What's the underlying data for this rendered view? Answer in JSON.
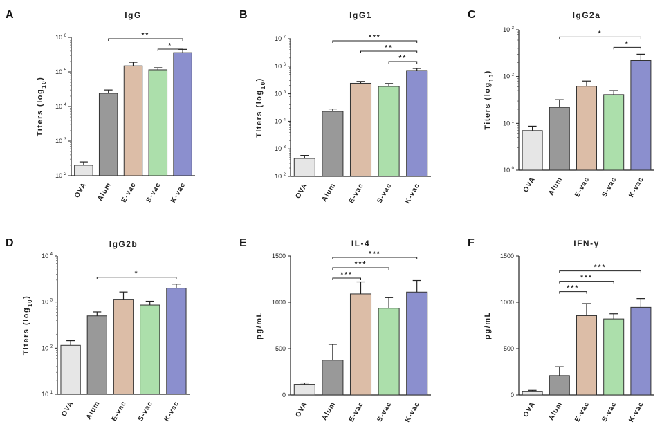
{
  "figure": {
    "background": "#ffffff"
  },
  "chart_data": [
    {
      "panel": "A",
      "type": "bar",
      "title": "IgG",
      "ylabel": "Titers (log10)",
      "xlabel": "",
      "scale": "log",
      "ylim": [
        100,
        1000000
      ],
      "yticks": [
        {
          "base": "10",
          "exp": "2"
        },
        {
          "base": "10",
          "exp": "3"
        },
        {
          "base": "10",
          "exp": "4"
        },
        {
          "base": "10",
          "exp": "5"
        },
        {
          "base": "10",
          "exp": "6"
        }
      ],
      "categories": [
        "OVA",
        "Alum",
        "E-vac",
        "S-vac",
        "K-vac"
      ],
      "colors": [
        "#e6e6e6",
        "#999999",
        "#dcbda7",
        "#acdfab",
        "#8b8fce"
      ],
      "values": [
        200,
        24000,
        150000,
        115000,
        360000
      ],
      "errors": [
        50,
        6000,
        40000,
        17000,
        90000
      ],
      "significance": [
        {
          "from": "Alum",
          "to": "K-vac",
          "label": "**"
        },
        {
          "from": "S-vac",
          "to": "K-vac",
          "label": "*"
        }
      ]
    },
    {
      "panel": "B",
      "type": "bar",
      "title": "IgG1",
      "ylabel": "Titers (log10)",
      "xlabel": "",
      "scale": "log",
      "ylim": [
        100,
        10000000
      ],
      "yticks": [
        {
          "base": "10",
          "exp": "2"
        },
        {
          "base": "10",
          "exp": "3"
        },
        {
          "base": "10",
          "exp": "4"
        },
        {
          "base": "10",
          "exp": "5"
        },
        {
          "base": "10",
          "exp": "6"
        },
        {
          "base": "10",
          "exp": "7"
        }
      ],
      "categories": [
        "OVA",
        "Alum",
        "E-vac",
        "S-vac",
        "K-vac"
      ],
      "colors": [
        "#e6e6e6",
        "#999999",
        "#dcbda7",
        "#acdfab",
        "#8b8fce"
      ],
      "values": [
        450,
        23000,
        240000,
        185000,
        700000
      ],
      "errors": [
        130,
        5000,
        40000,
        50000,
        130000
      ],
      "significance": [
        {
          "from": "Alum",
          "to": "K-vac",
          "label": "***"
        },
        {
          "from": "E-vac",
          "to": "K-vac",
          "label": "**"
        },
        {
          "from": "S-vac",
          "to": "K-vac",
          "label": "**"
        }
      ]
    },
    {
      "panel": "C",
      "type": "bar",
      "title": "IgG2a",
      "ylabel": "Titers (log10)",
      "xlabel": "",
      "scale": "log",
      "ylim": [
        1,
        1000
      ],
      "yticks": [
        {
          "base": "10",
          "exp": "0"
        },
        {
          "base": "10",
          "exp": "1"
        },
        {
          "base": "10",
          "exp": "2"
        },
        {
          "base": "10",
          "exp": "3"
        }
      ],
      "categories": [
        "OVA",
        "Alum",
        "E-vac",
        "S-vac",
        "K-vac"
      ],
      "colors": [
        "#e6e6e6",
        "#999999",
        "#dcbda7",
        "#acdfab",
        "#8b8fce"
      ],
      "values": [
        7,
        22,
        62,
        41,
        220
      ],
      "errors": [
        1.7,
        10,
        18,
        9,
        80
      ],
      "significance": [
        {
          "from": "Alum",
          "to": "K-vac",
          "label": "*"
        },
        {
          "from": "S-vac",
          "to": "K-vac",
          "label": "*"
        }
      ]
    },
    {
      "panel": "D",
      "type": "bar",
      "title": "IgG2b",
      "ylabel": "Titers (log10)",
      "xlabel": "",
      "scale": "log",
      "ylim": [
        10,
        10000
      ],
      "yticks": [
        {
          "base": "10",
          "exp": "1"
        },
        {
          "base": "10",
          "exp": "2"
        },
        {
          "base": "10",
          "exp": "3"
        },
        {
          "base": "10",
          "exp": "4"
        }
      ],
      "categories": [
        "OVA",
        "Alum",
        "E-vac",
        "S-vac",
        "K-vac"
      ],
      "colors": [
        "#e6e6e6",
        "#999999",
        "#dcbda7",
        "#acdfab",
        "#8b8fce"
      ],
      "values": [
        115,
        500,
        1150,
        860,
        2000
      ],
      "errors": [
        30,
        110,
        500,
        180,
        450
      ],
      "significance": [
        {
          "from": "Alum",
          "to": "K-vac",
          "label": "*"
        }
      ]
    },
    {
      "panel": "E",
      "type": "bar",
      "title": "IL-4",
      "ylabel": "pg/mL",
      "xlabel": "",
      "scale": "linear",
      "ylim": [
        0,
        1500
      ],
      "yticks": [
        {
          "base": "0",
          "exp": ""
        },
        {
          "base": "500",
          "exp": ""
        },
        {
          "base": "1000",
          "exp": ""
        },
        {
          "base": "1500",
          "exp": ""
        }
      ],
      "categories": [
        "OVA",
        "Alum",
        "E-vac",
        "S-vac",
        "K-vac"
      ],
      "colors": [
        "#e6e6e6",
        "#999999",
        "#dcbda7",
        "#acdfab",
        "#8b8fce"
      ],
      "values": [
        115,
        375,
        1090,
        935,
        1110
      ],
      "errors": [
        15,
        170,
        130,
        115,
        125
      ],
      "significance": [
        {
          "from": "Alum",
          "to": "E-vac",
          "label": "***"
        },
        {
          "from": "Alum",
          "to": "S-vac",
          "label": "***"
        },
        {
          "from": "Alum",
          "to": "K-vac",
          "label": "***"
        }
      ]
    },
    {
      "panel": "F",
      "type": "bar",
      "title": "IFN-γ",
      "ylabel": "pg/mL",
      "xlabel": "",
      "scale": "linear",
      "ylim": [
        0,
        1500
      ],
      "yticks": [
        {
          "base": "0",
          "exp": ""
        },
        {
          "base": "500",
          "exp": ""
        },
        {
          "base": "1000",
          "exp": ""
        },
        {
          "base": "1500",
          "exp": ""
        }
      ],
      "categories": [
        "OVA",
        "Alum",
        "E-vac",
        "S-vac",
        "K-vac"
      ],
      "colors": [
        "#e6e6e6",
        "#999999",
        "#dcbda7",
        "#acdfab",
        "#8b8fce"
      ],
      "values": [
        35,
        210,
        855,
        820,
        945
      ],
      "errors": [
        15,
        95,
        130,
        55,
        95
      ],
      "significance": [
        {
          "from": "Alum",
          "to": "E-vac",
          "label": "***"
        },
        {
          "from": "Alum",
          "to": "S-vac",
          "label": "***"
        },
        {
          "from": "Alum",
          "to": "K-vac",
          "label": "***"
        }
      ]
    }
  ]
}
